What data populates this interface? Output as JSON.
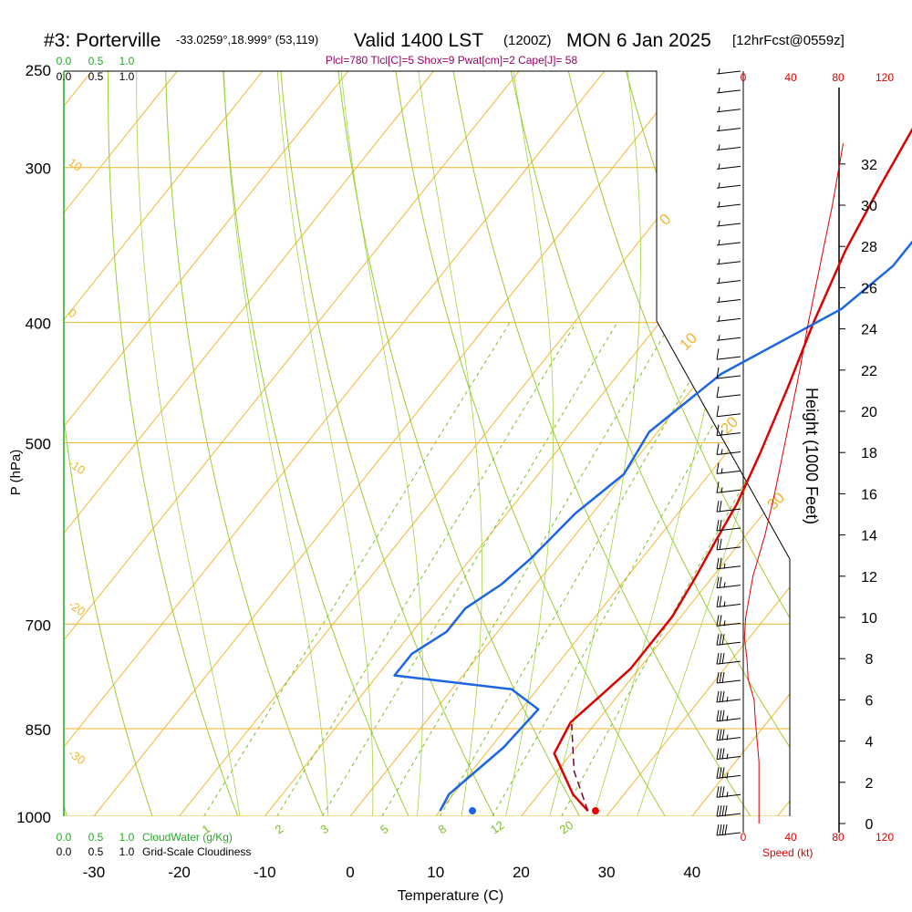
{
  "header": {
    "title_main": "#3: Porterville",
    "title_coords": "-33.0259°,18.999° (53,119)",
    "valid": "Valid 1400 LST",
    "valid_z": "(1200Z)",
    "date": "MON 6 Jan 2025",
    "forecast": "[12hrFcst@0559z]",
    "indices": "Plcl=780 Tlcl[C]=5 Shox=9 Pwat[cm]=2 Cape[J]= 58"
  },
  "chart_data": {
    "type": "line",
    "title": "#3: Porterville",
    "xlabel": "Temperature (C)",
    "ylabel": "P (hPa)",
    "y2label": "Height (1000 Feet)",
    "x_ticks": [
      "-30",
      "-20",
      "-10",
      "0",
      "10",
      "20",
      "30",
      "40"
    ],
    "xlim": [
      -34,
      36
    ],
    "pressure_ticks": [
      "250",
      "300",
      "400",
      "500",
      "700",
      "850",
      "1000"
    ],
    "height_ticks": [
      "0",
      "2",
      "4",
      "6",
      "8",
      "10",
      "12",
      "14",
      "16",
      "18",
      "20",
      "22",
      "24",
      "26",
      "28",
      "30",
      "32"
    ],
    "mixing_ratio_labels": [
      "1",
      "2",
      "3",
      "5",
      "8",
      "12",
      "20"
    ],
    "isotherm_labels": [
      "10",
      "0",
      "-10",
      "-20",
      "-30"
    ],
    "adiabat_labels": [
      "0",
      "10",
      "20",
      "30"
    ],
    "cloudwater_ticks": [
      "0.0",
      "0.5",
      "1.0"
    ],
    "cloudwater_label": "CloudWater (g/Kg)",
    "cloudiness_ticks": [
      "0.0",
      "0.5",
      "1.0"
    ],
    "cloudiness_label": "Grid-Scale Cloudiness",
    "speed_ticks": [
      "0",
      "40",
      "80",
      "120"
    ],
    "speed_label": "Speed (kt)",
    "series": [
      {
        "name": "Temperature",
        "color": "#dd0000",
        "points": [
          [
            27.3,
            990
          ],
          [
            24,
            960
          ],
          [
            18,
            890
          ],
          [
            17,
            840
          ],
          [
            18,
            800
          ],
          [
            19,
            760
          ],
          [
            19,
            720
          ],
          [
            19,
            690
          ],
          [
            18,
            640
          ],
          [
            17,
            600
          ],
          [
            16,
            560
          ],
          [
            14,
            510
          ],
          [
            11,
            450
          ],
          [
            8,
            400
          ],
          [
            5,
            350
          ],
          [
            3,
            310
          ],
          [
            1.5,
            280
          ],
          [
            0,
            250
          ]
        ]
      },
      {
        "name": "Dew point",
        "color": "#1a66e6",
        "points": [
          [
            10,
            990
          ],
          [
            9.5,
            960
          ],
          [
            11.5,
            880
          ],
          [
            12,
            820
          ],
          [
            7,
            790
          ],
          [
            -8,
            770
          ],
          [
            -8,
            740
          ],
          [
            -6,
            710
          ],
          [
            -6,
            680
          ],
          [
            -4,
            650
          ],
          [
            -3,
            620
          ],
          [
            -2,
            570
          ],
          [
            0,
            530
          ],
          [
            -1,
            490
          ],
          [
            2,
            440
          ],
          [
            10,
            390
          ],
          [
            12,
            360
          ],
          [
            12,
            340
          ],
          [
            9,
            300
          ],
          [
            8,
            280
          ],
          [
            5,
            250
          ]
        ]
      },
      {
        "name": "Parcel",
        "color": "#7a0033",
        "dash": "8,5",
        "points": [
          [
            27.3,
            990
          ],
          [
            22,
            920
          ],
          [
            17.3,
            843
          ]
        ]
      }
    ],
    "surface_markers": [
      {
        "name": "surface temperature",
        "t": 28.2,
        "p": 990,
        "color": "#ee0000"
      },
      {
        "name": "surface dew point",
        "t": 13.8,
        "p": 990,
        "color": "#1a66e6"
      }
    ],
    "speed_profile_kt": [
      [
        13,
        0
      ],
      [
        13,
        3
      ],
      [
        10,
        5
      ],
      [
        9,
        6
      ],
      [
        4,
        7
      ],
      [
        3,
        8
      ],
      [
        1,
        9
      ],
      [
        2,
        10
      ],
      [
        8,
        12
      ],
      [
        18,
        14
      ],
      [
        26,
        16
      ],
      [
        33,
        18
      ],
      [
        40,
        20
      ],
      [
        47,
        22
      ],
      [
        53,
        24
      ],
      [
        60,
        26
      ],
      [
        67,
        28
      ],
      [
        74,
        30
      ],
      [
        80,
        32
      ],
      [
        83,
        33
      ]
    ],
    "wind_barbs_kt": [
      40,
      40,
      35,
      35,
      35,
      35,
      35,
      35,
      30,
      30,
      30,
      25,
      25,
      25,
      25,
      20,
      20,
      20,
      15,
      15,
      15,
      15,
      10,
      10,
      10,
      10,
      5,
      5,
      5,
      5,
      5,
      5,
      5,
      5,
      5,
      5,
      5,
      5,
      5,
      5,
      5
    ],
    "colors": {
      "isotherm": "#f0b52a",
      "dry_adiabat": "#9acd32",
      "mixing_ratio": "#7bbf2a",
      "accent_text": "#990066",
      "green_axis": "#22aa22"
    }
  }
}
